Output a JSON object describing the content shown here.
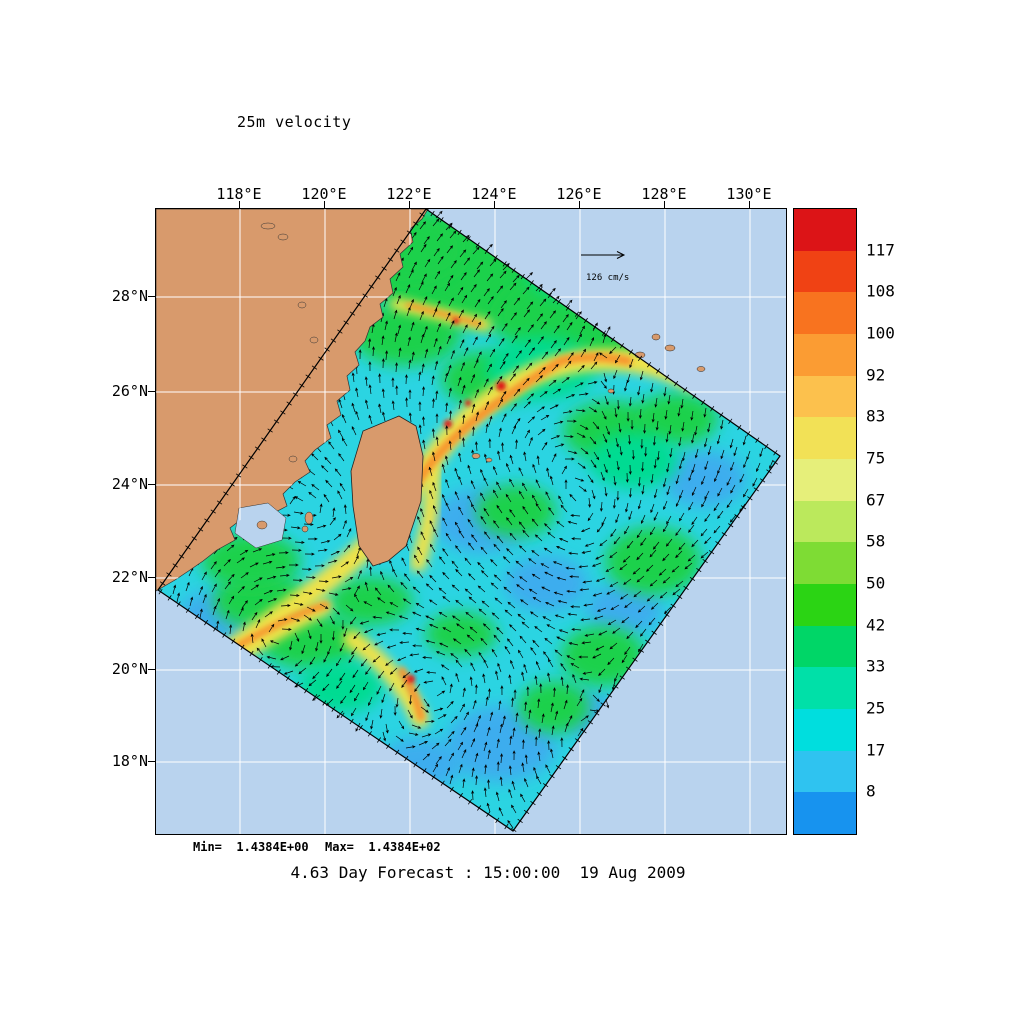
{
  "title": "25m velocity",
  "caption": "4.63 Day Forecast : 15:00:00  19 Aug 2009",
  "stats": {
    "min_label": "Min=  1.4384E+00",
    "max_label": "Max=  1.4384E+02"
  },
  "reference_vector": {
    "label": "126 cm/s"
  },
  "axes": {
    "lon_labels": [
      "118°E",
      "120°E",
      "122°E",
      "124°E",
      "126°E",
      "128°E",
      "130°E"
    ],
    "lat_labels": [
      "28°N",
      "26°N",
      "24°N",
      "22°N",
      "20°N",
      "18°N"
    ]
  },
  "colorbar": {
    "labels": [
      "117",
      "108",
      "100",
      "92",
      "83",
      "75",
      "67",
      "58",
      "50",
      "42",
      "33",
      "25",
      "17",
      "8"
    ],
    "colors_top_to_bottom": [
      "#dc1417",
      "#f04214",
      "#f8731f",
      "#fb9c33",
      "#fcc14d",
      "#f2e156",
      "#e6ef7a",
      "#bbe95c",
      "#7edc34",
      "#2bd414",
      "#00d667",
      "#00e0a8",
      "#00dede",
      "#2fc3f0",
      "#1793ef"
    ]
  },
  "map": {
    "ocean_color": "#b9d3ee",
    "land_color": "#d89a6c",
    "grid_color": "#ffffff",
    "domain_base_color": "#2bd4e2",
    "vector_color": "#000000"
  },
  "chart_data": {
    "type": "heatmap",
    "title": "25m velocity",
    "units": "cm/s",
    "x_tick_labels": [
      "118°E",
      "120°E",
      "122°E",
      "124°E",
      "126°E",
      "128°E",
      "130°E"
    ],
    "y_tick_labels": [
      "28°N",
      "26°N",
      "24°N",
      "22°N",
      "20°N",
      "18°N"
    ],
    "colorbar_levels_top_to_bottom": [
      117,
      108,
      100,
      92,
      83,
      75,
      67,
      58,
      50,
      42,
      33,
      25,
      17,
      8
    ],
    "colorbar_colors_top_to_bottom": [
      "#dc1417",
      "#f04214",
      "#f8731f",
      "#fb9c33",
      "#fcc14d",
      "#f2e156",
      "#e6ef7a",
      "#bbe95c",
      "#7edc34",
      "#2bd414",
      "#00d667",
      "#00e0a8",
      "#00dede",
      "#2fc3f0",
      "#1793ef"
    ],
    "value_min": 1.4384,
    "value_max": 143.84,
    "reference_vector": "126 cm/s",
    "caption": "4.63 Day Forecast : 15:00:00  19 Aug 2009",
    "legend_position": "right",
    "grid": true,
    "description": "Rotated ocean-model domain over the Taiwan / East China Sea region: 25 m depth current speed shaded in cm/s with black velocity vectors; strong yellow-orange-red current core east of Taiwan curving northeast; mainland China and Taiwan land shown in tan; white lat/lon graticule on pale blue ocean."
  }
}
